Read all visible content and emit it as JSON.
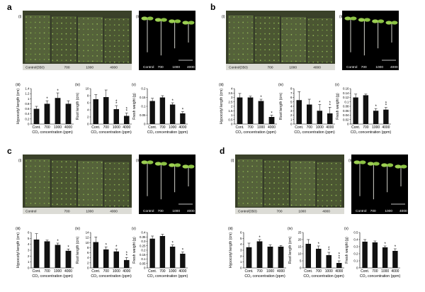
{
  "xlabel": "CO₂ concentration (ppm)",
  "co2_tick_labels": [
    "Cont.",
    "700",
    "1000",
    "4000"
  ],
  "photo_labels": [
    "Control(350)",
    "700",
    "1000",
    "4000"
  ],
  "seedling_labels": [
    "Control",
    "700",
    "1000",
    "4000"
  ],
  "sub_labels": [
    "(i)",
    "(ii)",
    "(iii)",
    "(iv)",
    "(v)"
  ],
  "colors": {
    "bar": "#111111",
    "photo_bg": "#2f3524",
    "seedling_bg": "#000000"
  },
  "panels": [
    {
      "letter": "a",
      "photo_labels": [
        "Control(350)",
        "700",
        "1000",
        "4000"
      ],
      "seedling_labels": [
        "Control",
        "700",
        "1000",
        "4000"
      ]
    },
    {
      "letter": "b",
      "photo_labels": [
        "Control(350)",
        "700",
        "1000",
        "4000"
      ],
      "seedling_labels": [
        "Control",
        "700",
        "1000",
        "4000"
      ]
    },
    {
      "letter": "c",
      "photo_labels": [
        "Control",
        "700",
        "1000",
        "4000"
      ],
      "seedling_labels": [
        "Control",
        "700",
        "1000",
        "4000"
      ]
    },
    {
      "letter": "d",
      "photo_labels": [
        "Control(350)",
        "700",
        "1000",
        "4000"
      ],
      "seedling_labels": [
        "Control",
        "700",
        "1000",
        "4000"
      ]
    }
  ],
  "chart_data": [
    {
      "panel": "a",
      "sub": "(iii)",
      "type": "bar",
      "ylabel": "Hypocotyl length (cm)",
      "ylim": [
        0,
        1.4
      ],
      "ticks": [
        0,
        0.2,
        0.4,
        0.6,
        0.8,
        1.0,
        1.2,
        1.4
      ],
      "categories": [
        "Cont.",
        "700",
        "1000",
        "4000"
      ],
      "values": [
        0.6,
        0.8,
        1.03,
        0.8
      ],
      "errors": [
        0.1,
        0.12,
        0.2,
        0.12
      ],
      "stars": [
        "",
        "*",
        "*",
        ""
      ]
    },
    {
      "panel": "a",
      "sub": "(iv)",
      "type": "bar",
      "ylabel": "Root length (cm)",
      "ylim": [
        0,
        10
      ],
      "ticks": [
        0,
        2,
        4,
        6,
        8,
        10
      ],
      "categories": [
        "Cont.",
        "700",
        "1000",
        "4000"
      ],
      "values": [
        7,
        7.6,
        4.2,
        2.3
      ],
      "errors": [
        1.3,
        2.0,
        1.0,
        0.8
      ],
      "stars": [
        "",
        "",
        "*\n*",
        "*\n*"
      ]
    },
    {
      "panel": "a",
      "sub": "(v)",
      "type": "bar",
      "ylabel": "Fresh weight (g)",
      "ylim": [
        0,
        0.2
      ],
      "ticks": [
        0,
        0.05,
        0.1,
        0.15,
        0.2
      ],
      "categories": [
        "Cont.",
        "700",
        "1000",
        "4000"
      ],
      "values": [
        0.13,
        0.15,
        0.11,
        0.06
      ],
      "errors": [
        0.015,
        0.01,
        0.01,
        0.01
      ],
      "stars": [
        "",
        "",
        "*",
        "*"
      ]
    },
    {
      "panel": "b",
      "sub": "(iii)",
      "type": "bar",
      "ylabel": "Hypocotyl length (cm)",
      "ylim": [
        0,
        4.0
      ],
      "ticks": [
        0,
        0.5,
        1.0,
        1.5,
        2.0,
        2.5,
        3.0,
        3.5,
        4.0
      ],
      "categories": [
        "Cont.",
        "700",
        "1000",
        "4000"
      ],
      "values": [
        3.0,
        3.0,
        2.6,
        0.8
      ],
      "errors": [
        0.45,
        0.15,
        0.2,
        0.2
      ],
      "stars": [
        "",
        "",
        "*",
        "*"
      ]
    },
    {
      "panel": "b",
      "sub": "(iv)",
      "type": "bar",
      "ylabel": "Root length (cm)",
      "ylim": [
        0,
        8
      ],
      "ticks": [
        0,
        1,
        2,
        3,
        4,
        5,
        6,
        7,
        8
      ],
      "categories": [
        "Cont.",
        "700",
        "1000",
        "4000"
      ],
      "values": [
        5.4,
        4.4,
        3.0,
        2.4
      ],
      "errors": [
        1.9,
        1.2,
        1.4,
        1.4
      ],
      "stars": [
        "",
        "",
        "*",
        "*\n*"
      ]
    },
    {
      "panel": "b",
      "sub": "(v)",
      "type": "bar",
      "ylabel": "Fresh weight (g)",
      "ylim": [
        0,
        0.16
      ],
      "ticks": [
        0,
        0.02,
        0.04,
        0.06,
        0.08,
        0.1,
        0.12,
        0.14,
        0.16
      ],
      "categories": [
        "Cont.",
        "700",
        "1000",
        "4000"
      ],
      "values": [
        0.12,
        0.13,
        0.06,
        0.065
      ],
      "errors": [
        0.015,
        0.005,
        0.01,
        0.01
      ],
      "stars": [
        "",
        "",
        "*",
        "*\n*"
      ]
    },
    {
      "panel": "c",
      "sub": "(iii)",
      "type": "bar",
      "ylabel": "Hypocotyl length (cm)",
      "ylim": [
        0,
        6
      ],
      "ticks": [
        0,
        1,
        2,
        3,
        4,
        5,
        6
      ],
      "categories": [
        "Cont.",
        "700",
        "1000",
        "4000"
      ],
      "values": [
        4.8,
        4.5,
        3.9,
        2.9
      ],
      "errors": [
        1.0,
        0.2,
        0.3,
        0.3
      ],
      "stars": [
        "",
        "",
        "*",
        "*"
      ]
    },
    {
      "panel": "c",
      "sub": "(iv)",
      "type": "bar",
      "ylabel": "Root length (cm)",
      "ylim": [
        0,
        14
      ],
      "ticks": [
        0,
        2,
        4,
        6,
        8,
        10,
        12,
        14
      ],
      "categories": [
        "Cont.",
        "700",
        "1000",
        "4000"
      ],
      "values": [
        10.2,
        7.3,
        6.5,
        3.1
      ],
      "errors": [
        2.0,
        1.0,
        1.0,
        1.0
      ],
      "stars": [
        "",
        "*",
        "*",
        "*\n*"
      ]
    },
    {
      "panel": "c",
      "sub": "(v)",
      "type": "bar",
      "ylabel": "Fresh weight (g)",
      "ylim": [
        0,
        0.4
      ],
      "ticks": [
        0,
        0.05,
        0.1,
        0.15,
        0.2,
        0.25,
        0.3,
        0.35,
        0.4
      ],
      "categories": [
        "Cont.",
        "700",
        "1000",
        "4000"
      ],
      "values": [
        0.33,
        0.36,
        0.24,
        0.16
      ],
      "errors": [
        0.03,
        0.02,
        0.02,
        0.02
      ],
      "stars": [
        "",
        "",
        "*",
        "*"
      ]
    },
    {
      "panel": "d",
      "sub": "(iii)",
      "type": "bar",
      "ylabel": "Hypocotyl length (cm)",
      "ylim": [
        0,
        6
      ],
      "ticks": [
        0,
        1,
        2,
        3,
        4,
        5,
        6
      ],
      "categories": [
        "Cont.",
        "700",
        "1000",
        "4000"
      ],
      "values": [
        3.5,
        4.5,
        3.6,
        3.6
      ],
      "errors": [
        0.7,
        0.3,
        0.3,
        0.2
      ],
      "stars": [
        "",
        "*",
        "",
        ""
      ]
    },
    {
      "panel": "d",
      "sub": "(iv)",
      "type": "bar",
      "ylabel": "Root length (cm)",
      "ylim": [
        0,
        25
      ],
      "ticks": [
        0,
        5,
        10,
        15,
        20,
        25
      ],
      "categories": [
        "Cont.",
        "700",
        "1000",
        "4000"
      ],
      "values": [
        17,
        13.5,
        9,
        3.5
      ],
      "errors": [
        3,
        2,
        2,
        1.5
      ],
      "stars": [
        "",
        "*",
        "*\n*",
        "*\n*\n*"
      ]
    },
    {
      "panel": "d",
      "sub": "(v)",
      "type": "bar",
      "ylabel": "Fresh weight (g)",
      "ylim": [
        0,
        0.5
      ],
      "ticks": [
        0,
        0.1,
        0.2,
        0.3,
        0.4,
        0.5
      ],
      "categories": [
        "Cont.",
        "700",
        "1000",
        "4000"
      ],
      "values": [
        0.37,
        0.36,
        0.29,
        0.24
      ],
      "errors": [
        0.03,
        0.02,
        0.02,
        0.03
      ],
      "stars": [
        "",
        "",
        "*",
        "*"
      ]
    }
  ]
}
